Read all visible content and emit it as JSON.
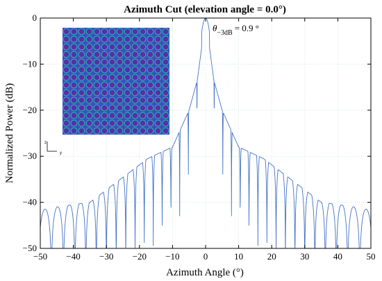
{
  "chart_data": {
    "type": "line",
    "title": "Azimuth Cut (elevation angle = 0.0°)",
    "xlabel": "Azimuth Angle (°)",
    "ylabel": "Normalized Power (dB)",
    "xlim": [
      -50,
      50
    ],
    "ylim": [
      -50,
      0
    ],
    "xticks": [
      -50,
      -40,
      -30,
      -20,
      -10,
      0,
      10,
      20,
      30,
      40,
      50
    ],
    "yticks": [
      0,
      -10,
      -20,
      -30,
      -40,
      -50
    ],
    "xtick_labels": [
      "−50",
      "−40",
      "−30",
      "−20",
      "−10",
      "0",
      "10",
      "20",
      "30",
      "40",
      "50"
    ],
    "ytick_labels": [
      "0",
      "−10",
      "−20",
      "−30",
      "−40",
      "−50"
    ],
    "grid": true,
    "series": [
      {
        "color": "#4472c4",
        "description_points": {
          "x": [
            -50,
            -35,
            -17.5,
            -10,
            -5,
            -2.5,
            0,
            2.5,
            5,
            10,
            17.5,
            35,
            50
          ],
          "y": [
            -41.5,
            -40,
            -30.5,
            -28,
            -20,
            -13.5,
            0,
            -13.5,
            -20,
            -28,
            -30.5,
            -40,
            -41.5
          ]
        }
      }
    ],
    "annotation": {
      "symbol": "θ",
      "subscript": "−3dB",
      "text": "= 0.9 °"
    },
    "inset": {
      "rows": 14,
      "cols": 14,
      "element_color": "#5a2ea6",
      "element_edge_color": "#28b6b0",
      "background_color": "#3b4fbf",
      "frame_labels": [
        "z",
        "y"
      ]
    }
  }
}
